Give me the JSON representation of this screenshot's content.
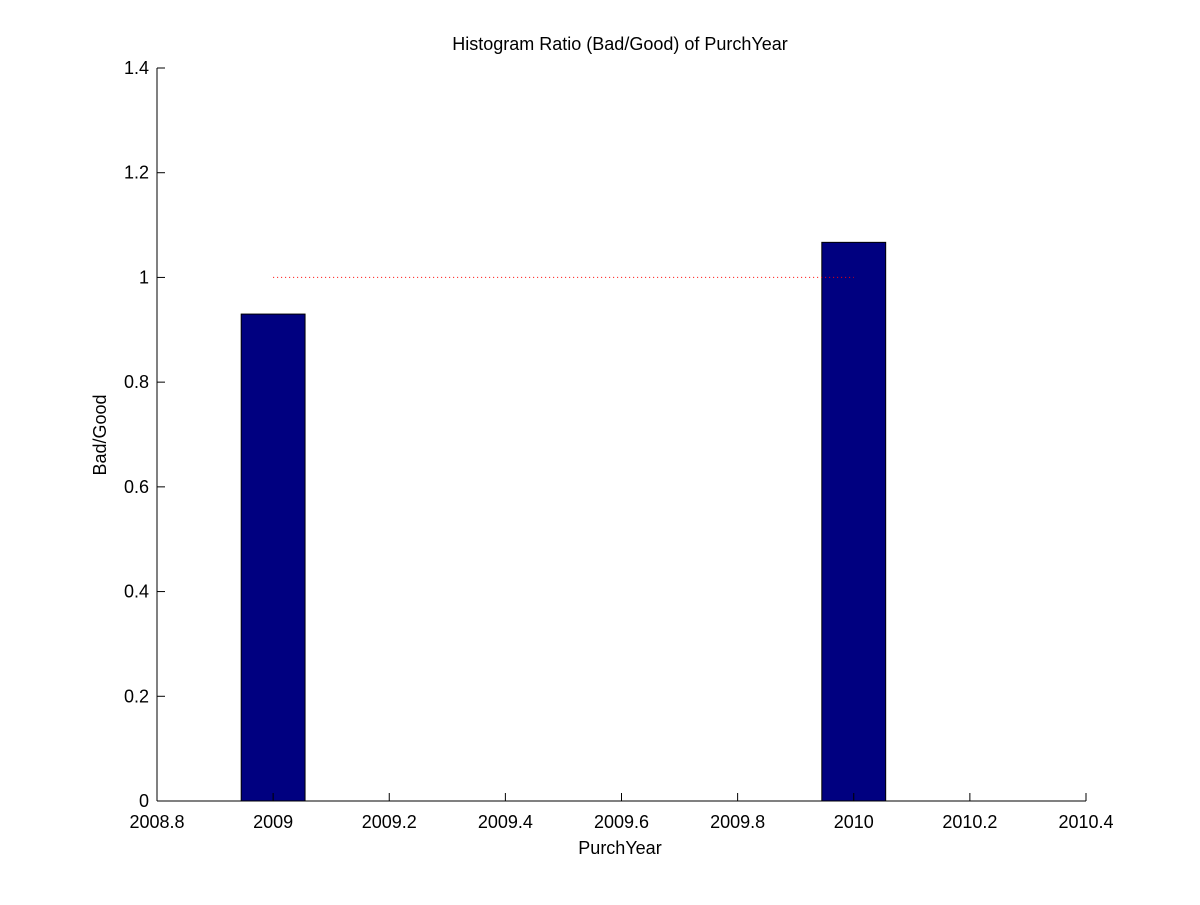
{
  "chart_data": {
    "type": "bar",
    "title": "Histogram Ratio (Bad/Good) of PurchYear",
    "xlabel": "PurchYear",
    "ylabel": "Bad/Good",
    "xlim": [
      2008.8,
      2010.4
    ],
    "ylim": [
      0,
      1.4
    ],
    "xticks": [
      2008.8,
      2009,
      2009.2,
      2009.4,
      2009.6,
      2009.8,
      2010,
      2010.2,
      2010.4
    ],
    "xtick_labels": [
      "2008.8",
      "2009",
      "2009.2",
      "2009.4",
      "2009.6",
      "2009.8",
      "2010",
      "2010.2",
      "2010.4"
    ],
    "yticks": [
      0,
      0.2,
      0.4,
      0.6,
      0.8,
      1,
      1.2,
      1.4
    ],
    "ytick_labels": [
      "0",
      "0.2",
      "0.4",
      "0.6",
      "0.8",
      "1",
      "1.2",
      "1.4"
    ],
    "bar_width": 0.11,
    "series": [
      {
        "x": [
          2009,
          2010
        ],
        "values": [
          0.93,
          1.067
        ],
        "color": "#000080"
      }
    ],
    "reference_line": {
      "y": 1,
      "x_range": [
        2009,
        2010
      ],
      "color": "#ff0000",
      "style": "dotted"
    },
    "grid": false,
    "legend": "none"
  }
}
